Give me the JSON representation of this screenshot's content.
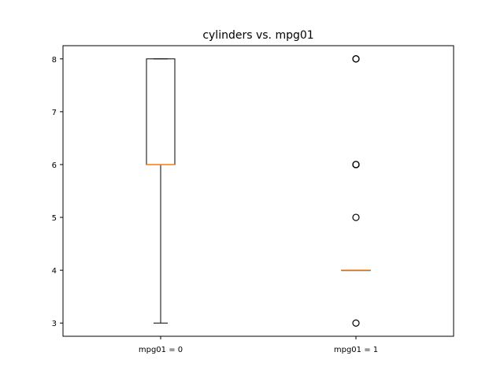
{
  "chart_data": {
    "type": "box",
    "title": "cylinders vs. mpg01",
    "xlabel": "",
    "ylabel": "",
    "categories": [
      "mpg01 = 0",
      "mpg01 = 1"
    ],
    "ylim": [
      2.75,
      8.25
    ],
    "yticks": [
      3,
      4,
      5,
      6,
      7,
      8
    ],
    "boxes": [
      {
        "category": "mpg01 = 0",
        "whisker_low": 3,
        "q1": 6,
        "median": 6,
        "q3": 8,
        "whisker_high": 8,
        "outliers": []
      },
      {
        "category": "mpg01 = 1",
        "whisker_low": 4,
        "q1": 4,
        "median": 4,
        "q3": 4,
        "whisker_high": 4,
        "outliers": [
          3,
          5,
          6,
          6,
          6,
          8,
          8
        ]
      }
    ],
    "grid": false,
    "colors": {
      "box": "#000000",
      "median": "#ff7f0e",
      "outlier": "#000000"
    }
  }
}
